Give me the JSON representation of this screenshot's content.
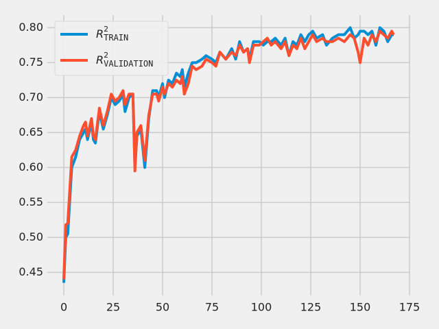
{
  "chart_data": {
    "type": "line",
    "x": [
      0,
      1,
      2,
      4,
      6,
      8,
      10,
      11,
      12,
      14,
      15,
      16,
      18,
      20,
      22,
      24,
      26,
      28,
      30,
      31,
      33,
      35,
      36,
      37,
      39,
      41,
      43,
      45,
      47,
      48,
      50,
      51,
      53,
      55,
      57,
      59,
      60,
      61,
      63,
      65,
      67,
      70,
      72,
      75,
      77,
      79,
      82,
      85,
      87,
      89,
      91,
      93,
      94,
      96,
      99,
      101,
      103,
      105,
      107,
      110,
      112,
      114,
      116,
      118,
      120,
      122,
      124,
      126,
      128,
      131,
      133,
      136,
      139,
      142,
      145,
      147,
      149,
      150,
      152,
      154,
      156,
      158,
      160,
      162,
      164,
      166,
      167
    ],
    "series": [
      {
        "name": "R",
        "superscript": "2",
        "subscript": "TRAIN",
        "color": "#008fd5",
        "values": [
          0.435,
          0.5,
          0.505,
          0.6,
          0.615,
          0.64,
          0.65,
          0.655,
          0.64,
          0.665,
          0.64,
          0.635,
          0.68,
          0.655,
          0.675,
          0.7,
          0.69,
          0.695,
          0.705,
          0.68,
          0.7,
          0.705,
          0.6,
          0.645,
          0.655,
          0.6,
          0.67,
          0.71,
          0.71,
          0.7,
          0.72,
          0.7,
          0.725,
          0.72,
          0.735,
          0.73,
          0.74,
          0.715,
          0.735,
          0.75,
          0.75,
          0.755,
          0.76,
          0.755,
          0.75,
          0.765,
          0.755,
          0.77,
          0.755,
          0.78,
          0.765,
          0.77,
          0.755,
          0.78,
          0.78,
          0.775,
          0.78,
          0.78,
          0.785,
          0.775,
          0.785,
          0.76,
          0.78,
          0.775,
          0.79,
          0.78,
          0.79,
          0.795,
          0.785,
          0.79,
          0.775,
          0.785,
          0.79,
          0.79,
          0.8,
          0.785,
          0.79,
          0.795,
          0.795,
          0.79,
          0.795,
          0.775,
          0.8,
          0.795,
          0.78,
          0.79,
          0.79
        ]
      },
      {
        "name": "R",
        "superscript": "2",
        "subscript": "VALIDATION",
        "color": "#fc4f30",
        "values": [
          0.44,
          0.518,
          0.52,
          0.615,
          0.625,
          0.645,
          0.66,
          0.665,
          0.645,
          0.67,
          0.645,
          0.64,
          0.685,
          0.66,
          0.68,
          0.705,
          0.695,
          0.7,
          0.71,
          0.69,
          0.705,
          0.705,
          0.595,
          0.65,
          0.66,
          0.61,
          0.675,
          0.705,
          0.705,
          0.695,
          0.715,
          0.705,
          0.72,
          0.715,
          0.725,
          0.72,
          0.73,
          0.705,
          0.72,
          0.745,
          0.74,
          0.745,
          0.755,
          0.75,
          0.745,
          0.765,
          0.755,
          0.765,
          0.76,
          0.775,
          0.765,
          0.77,
          0.75,
          0.775,
          0.775,
          0.78,
          0.785,
          0.775,
          0.78,
          0.77,
          0.78,
          0.76,
          0.775,
          0.77,
          0.785,
          0.77,
          0.78,
          0.79,
          0.78,
          0.785,
          0.78,
          0.78,
          0.785,
          0.78,
          0.79,
          0.785,
          0.765,
          0.75,
          0.785,
          0.775,
          0.79,
          0.78,
          0.795,
          0.79,
          0.785,
          0.795,
          0.79
        ]
      }
    ],
    "xlim": [
      -8.35,
      175.35
    ],
    "xticks": [
      0,
      25,
      50,
      75,
      100,
      125,
      150,
      175
    ],
    "ylim": [
      0.417,
      0.818
    ],
    "yticks": [
      0.45,
      0.5,
      0.55,
      0.6,
      0.65,
      0.7,
      0.75,
      0.8
    ],
    "grid": true,
    "legend": "upper left"
  }
}
